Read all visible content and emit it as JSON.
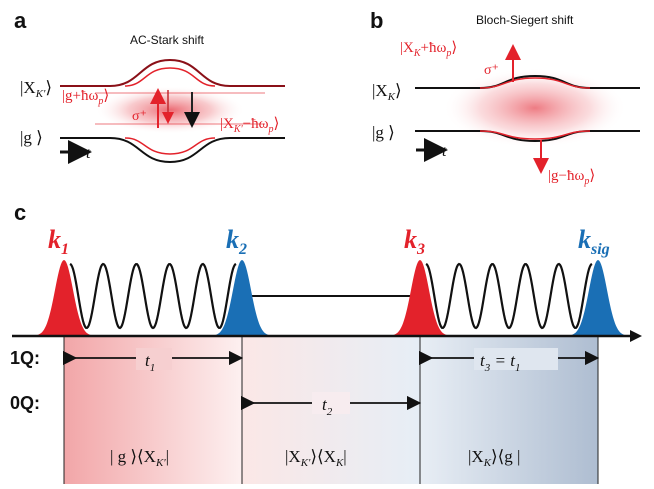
{
  "panels": {
    "a": {
      "letter": "a",
      "title": "AC-Stark shift",
      "state_upper": "|X",
      "state_upper_sub": "K'",
      "state_lower": "|g",
      "dressed_upper": "|g+ħω",
      "dressed_upper_sub": "p",
      "dressed_lower": "|X",
      "dressed_lower_sub": "K'",
      "dressed_lower_tail": "−ħω",
      "dressed_lower_tail_sub": "p",
      "polarization": "σ⁺",
      "time_arrow": "t"
    },
    "b": {
      "letter": "b",
      "title": "Bloch-Siegert shift",
      "state_upper": "|X",
      "state_upper_sub": "K",
      "state_lower": "|g",
      "dressed_upper": "|X",
      "dressed_upper_sub": "K",
      "dressed_upper_tail": "+ħω",
      "dressed_upper_tail_sub": "p",
      "dressed_lower": "|g−ħω",
      "dressed_lower_sub": "p",
      "polarization": "σ⁺",
      "time_arrow": "t"
    },
    "c": {
      "letter": "c",
      "pulses": [
        {
          "label": "k",
          "sub": "1",
          "color": "#e3222b"
        },
        {
          "label": "k",
          "sub": "2",
          "color": "#1a6fb5"
        },
        {
          "label": "k",
          "sub": "3",
          "color": "#e3222b"
        },
        {
          "label": "k",
          "sub": "sig",
          "color": "#1a6fb5"
        }
      ],
      "row_1q": "1Q:",
      "row_0q": "0Q:",
      "t1": "t",
      "t1_sub": "1",
      "t2": "t",
      "t2_sub": "2",
      "t3": "t",
      "t3_sub": "3",
      "t3_eq": " = t",
      "t3_eq_sub": "1",
      "coherences": [
        {
          "a": "| g ⟩⟨X",
          "sub": "K'",
          "b": "|"
        },
        {
          "a": "|X",
          "sub": "K'",
          "b": "⟩⟨X",
          "sub2": "K",
          "c": "|"
        },
        {
          "a": "|X",
          "sub": "K",
          "b": "⟩⟨g |"
        }
      ]
    }
  },
  "colors": {
    "red": "#e3222b",
    "blue": "#1a6fb5",
    "dark": "#111111"
  }
}
